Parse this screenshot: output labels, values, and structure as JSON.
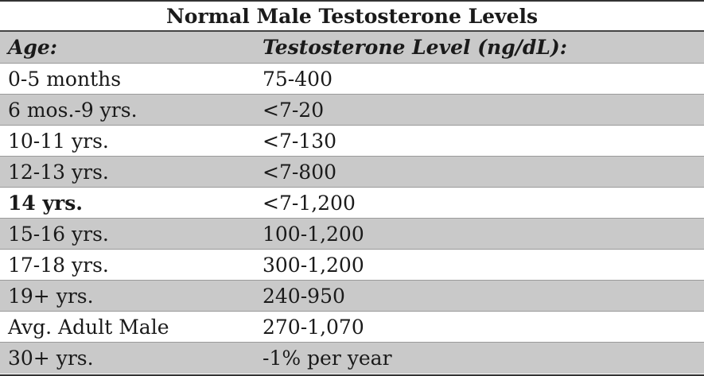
{
  "title": "Normal Male Testosterone Levels",
  "header": {
    "age": "Age:",
    "level": "Testosterone Level (ng/dL):"
  },
  "rows": [
    {
      "age": "0-5 months",
      "level": "75-400"
    },
    {
      "age": "6 mos.-9 yrs.",
      "level": "<7-20"
    },
    {
      "age": "10-11 yrs.",
      "level": "<7-130"
    },
    {
      "age": "12-13 yrs.",
      "level": "<7-800"
    },
    {
      "age": "14 yrs.",
      "level": "<7-1,200"
    },
    {
      "age": "15-16 yrs.",
      "level": "100-1,200"
    },
    {
      "age": "17-18 yrs.",
      "level": "300-1,200"
    },
    {
      "age": "19+ yrs.",
      "level": "240-950"
    },
    {
      "age": "Avg. Adult Male",
      "level": "270-1,070"
    },
    {
      "age": "30+ yrs.",
      "level": "-1% per year"
    }
  ],
  "colors": {
    "shaded_row": "#c9c9c9",
    "text": "#1a1a1a"
  }
}
